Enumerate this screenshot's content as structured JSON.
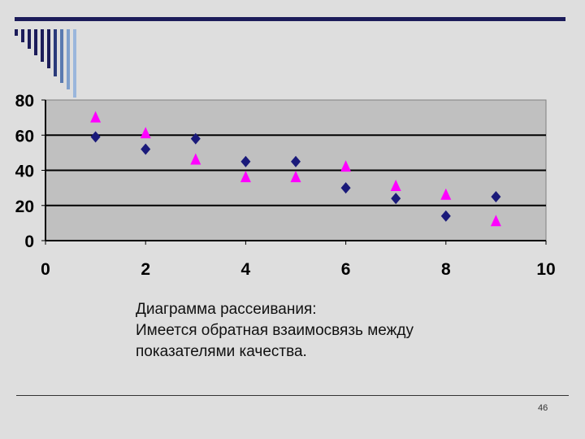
{
  "chart_data": {
    "type": "scatter",
    "xlim": [
      0,
      10
    ],
    "ylim": [
      0,
      80
    ],
    "xticks": [
      0,
      2,
      4,
      6,
      8,
      10
    ],
    "yticks": [
      0,
      20,
      40,
      60,
      80
    ],
    "grid": true,
    "series": [
      {
        "marker": "diamond",
        "color": "#1a1a7a",
        "points": [
          [
            1,
            59
          ],
          [
            2,
            52
          ],
          [
            3,
            58
          ],
          [
            4,
            45
          ],
          [
            5,
            45
          ],
          [
            6,
            30
          ],
          [
            7,
            24
          ],
          [
            8,
            14
          ],
          [
            9,
            25
          ]
        ]
      },
      {
        "marker": "triangle",
        "color": "#ff00ff",
        "points": [
          [
            1,
            70
          ],
          [
            2,
            61
          ],
          [
            3,
            46
          ],
          [
            4,
            36
          ],
          [
            5,
            36
          ],
          [
            6,
            42
          ],
          [
            7,
            31
          ],
          [
            8,
            26
          ],
          [
            9,
            11
          ]
        ]
      }
    ]
  },
  "caption": {
    "line1": "Диаграмма рассеивания:",
    "line2": "Имеется обратная взаимосвязь между",
    "line3": "показателями качества."
  },
  "page_number": "46"
}
